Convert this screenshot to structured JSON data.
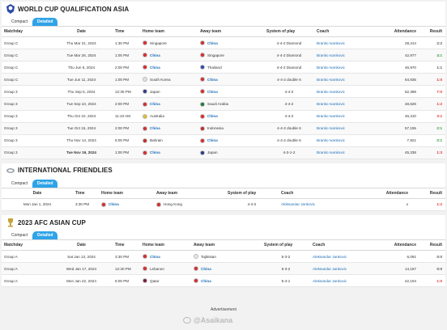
{
  "colors": {
    "accent": "#2fa3e8",
    "win": "#2f9e3c",
    "loss": "#d33333",
    "link": "#1e6fb8"
  },
  "wcq": {
    "title": "WORLD CUP QUALIFICATION ASIA",
    "tabs": [
      "Compact",
      "Detailed"
    ],
    "headers": [
      "Matchday",
      "Date",
      "Time",
      "Home team",
      "Away team",
      "System of play",
      "Coach",
      "Attendance",
      "Result"
    ],
    "rows": [
      {
        "md": "Group C",
        "date": "Thu Mar 21, 2024",
        "time": "1:30 PM",
        "home": "Singapore",
        "away": "China",
        "system": "4-4-2 Diamond",
        "coach": "Branko Ivankovic",
        "att": "28,414",
        "res": "2:2",
        "rc": "draw",
        "hb": false,
        "ab": true,
        "hf": "#d62d2d",
        "af": "#d62d2d"
      },
      {
        "md": "Group C",
        "date": "Tue Mar 26, 2024",
        "time": "1:00 PM",
        "home": "China",
        "away": "Singapore",
        "system": "4-4-2 Diamond",
        "coach": "Branko Ivankovic",
        "att": "42,977",
        "res": "4:1",
        "rc": "win",
        "hb": true,
        "ab": false,
        "hf": "#d62d2d",
        "af": "#d62d2d"
      },
      {
        "md": "Group C",
        "date": "Thu Jun 6, 2024",
        "time": "2:00 PM",
        "home": "China",
        "away": "Thailand",
        "system": "4-4-2 Diamond",
        "coach": "Branko Ivankovic",
        "att": "46,970",
        "res": "1:1",
        "rc": "draw",
        "hb": true,
        "ab": false,
        "hf": "#d62d2d",
        "af": "#2b4aa8"
      },
      {
        "md": "Group C",
        "date": "Tue Jun 11, 2024",
        "time": "1:00 PM",
        "home": "South Korea",
        "away": "China",
        "system": "4-4-2 double 6",
        "coach": "Branko Ivankovic",
        "att": "64,935",
        "res": "1:0",
        "rc": "loss",
        "hb": false,
        "ab": true,
        "hf": "#e0e0e0",
        "af": "#d62d2d"
      },
      {
        "md": "Group 3",
        "date": "Thu Sep 5, 2024",
        "time": "12:35 PM",
        "home": "Japan",
        "away": "China",
        "system": "4-4-2",
        "coach": "Branko Ivankovic",
        "att": "52,398",
        "res": "7:0",
        "rc": "loss",
        "hb": false,
        "ab": true,
        "hf": "#2b3a8a",
        "af": "#d62d2d"
      },
      {
        "md": "Group 3",
        "date": "Tue Sep 10, 2024",
        "time": "2:00 PM",
        "home": "China",
        "away": "Saudi Arabia",
        "system": "4-4-2",
        "coach": "Branko Ivankovic",
        "att": "48,626",
        "res": "1:2",
        "rc": "loss",
        "hb": true,
        "ab": false,
        "hf": "#d62d2d",
        "af": "#1c7a3a"
      },
      {
        "md": "Group 3",
        "date": "Thu Oct 10, 2024",
        "time": "11:10 AM",
        "home": "Australia",
        "away": "China",
        "system": "4-4-2",
        "coach": "Branko Ivankovic",
        "att": "46,310",
        "res": "3:1",
        "rc": "loss",
        "hb": false,
        "ab": true,
        "hf": "#e3b92a",
        "af": "#d62d2d"
      },
      {
        "md": "Group 3",
        "date": "Tue Oct 15, 2024",
        "time": "2:00 PM",
        "home": "China",
        "away": "Indonesia",
        "system": "4-4-2 double 6",
        "coach": "Branko Ivankovic",
        "att": "57,155",
        "res": "2:1",
        "rc": "win",
        "hb": true,
        "ab": false,
        "hf": "#d62d2d",
        "af": "#c42a2a"
      },
      {
        "md": "Group 3",
        "date": "Thu Nov 14, 2024",
        "time": "5:00 PM",
        "home": "Bahrain",
        "away": "China",
        "system": "4-4-2 double 6",
        "coach": "Branko Ivankovic",
        "att": "7,921",
        "res": "0:1",
        "rc": "win",
        "hb": false,
        "ab": true,
        "hf": "#c42a2a",
        "af": "#d62d2d"
      },
      {
        "md": "Group 3",
        "date": "Tue Nov 19, 2024",
        "time": "1:00 PM",
        "home": "China",
        "away": "Japan",
        "system": "4-3-1-2",
        "coach": "Branko Ivankovic",
        "att": "45,338",
        "res": "1:3",
        "rc": "loss",
        "hb": true,
        "ab": false,
        "hf": "#d62d2d",
        "af": "#2b3a8a",
        "bolddate": true
      }
    ]
  },
  "friendlies": {
    "title": "INTERNATIONAL FRIENDLIES",
    "tabs": [
      "Compact",
      "Detailed"
    ],
    "headers": [
      "Date",
      "Time",
      "Home team",
      "Away team",
      "System of play",
      "Coach",
      "Attendance",
      "Result"
    ],
    "rows": [
      {
        "date": "Mon Jan 1, 2024",
        "time": "3:30 PM",
        "home": "China",
        "away": "Hong Kong",
        "system": "4-4-2",
        "coach": "Aleksandar Jankovic",
        "att": "x",
        "res": "1:2",
        "rc": "loss",
        "hb": true,
        "ab": false,
        "hf": "#d62d2d",
        "af": "#d62d2d"
      }
    ]
  },
  "asiancup": {
    "title": "2023 AFC ASIAN CUP",
    "tabs": [
      "Compact",
      "Detailed"
    ],
    "headers": [
      "Matchday",
      "Date",
      "Time",
      "Home team",
      "Away team",
      "System of play",
      "Coach",
      "Attendance",
      "Result"
    ],
    "rows": [
      {
        "md": "Group A",
        "date": "Sat Jan 13, 2024",
        "time": "3:30 PM",
        "home": "China",
        "away": "Tajikistan",
        "system": "5-3-2",
        "coach": "Aleksandar Jankovic",
        "att": "6,091",
        "res": "0:0",
        "rc": "draw",
        "hb": true,
        "ab": false,
        "hf": "#d62d2d",
        "af": "#e6e6e6"
      },
      {
        "md": "Group A",
        "date": "Wed Jan 17, 2024",
        "time": "12:30 PM",
        "home": "Lebanon",
        "away": "China",
        "system": "5-3-2",
        "coach": "Aleksandar Jankovic",
        "att": "14,157",
        "res": "0:0",
        "rc": "draw",
        "hb": false,
        "ab": true,
        "hf": "#d62d2d",
        "af": "#d62d2d"
      },
      {
        "md": "Group A",
        "date": "Mon Jan 22, 2024",
        "time": "6:00 PM",
        "home": "Qatar",
        "away": "China",
        "system": "5-4-1",
        "coach": "Aleksandar Jankovic",
        "att": "42,104",
        "res": "1:0",
        "rc": "loss",
        "hb": false,
        "ab": true,
        "hf": "#7b1c34",
        "af": "#d62d2d"
      }
    ]
  },
  "footer": {
    "advertisement": "Advertisement",
    "watermark": "@Asaikana"
  }
}
